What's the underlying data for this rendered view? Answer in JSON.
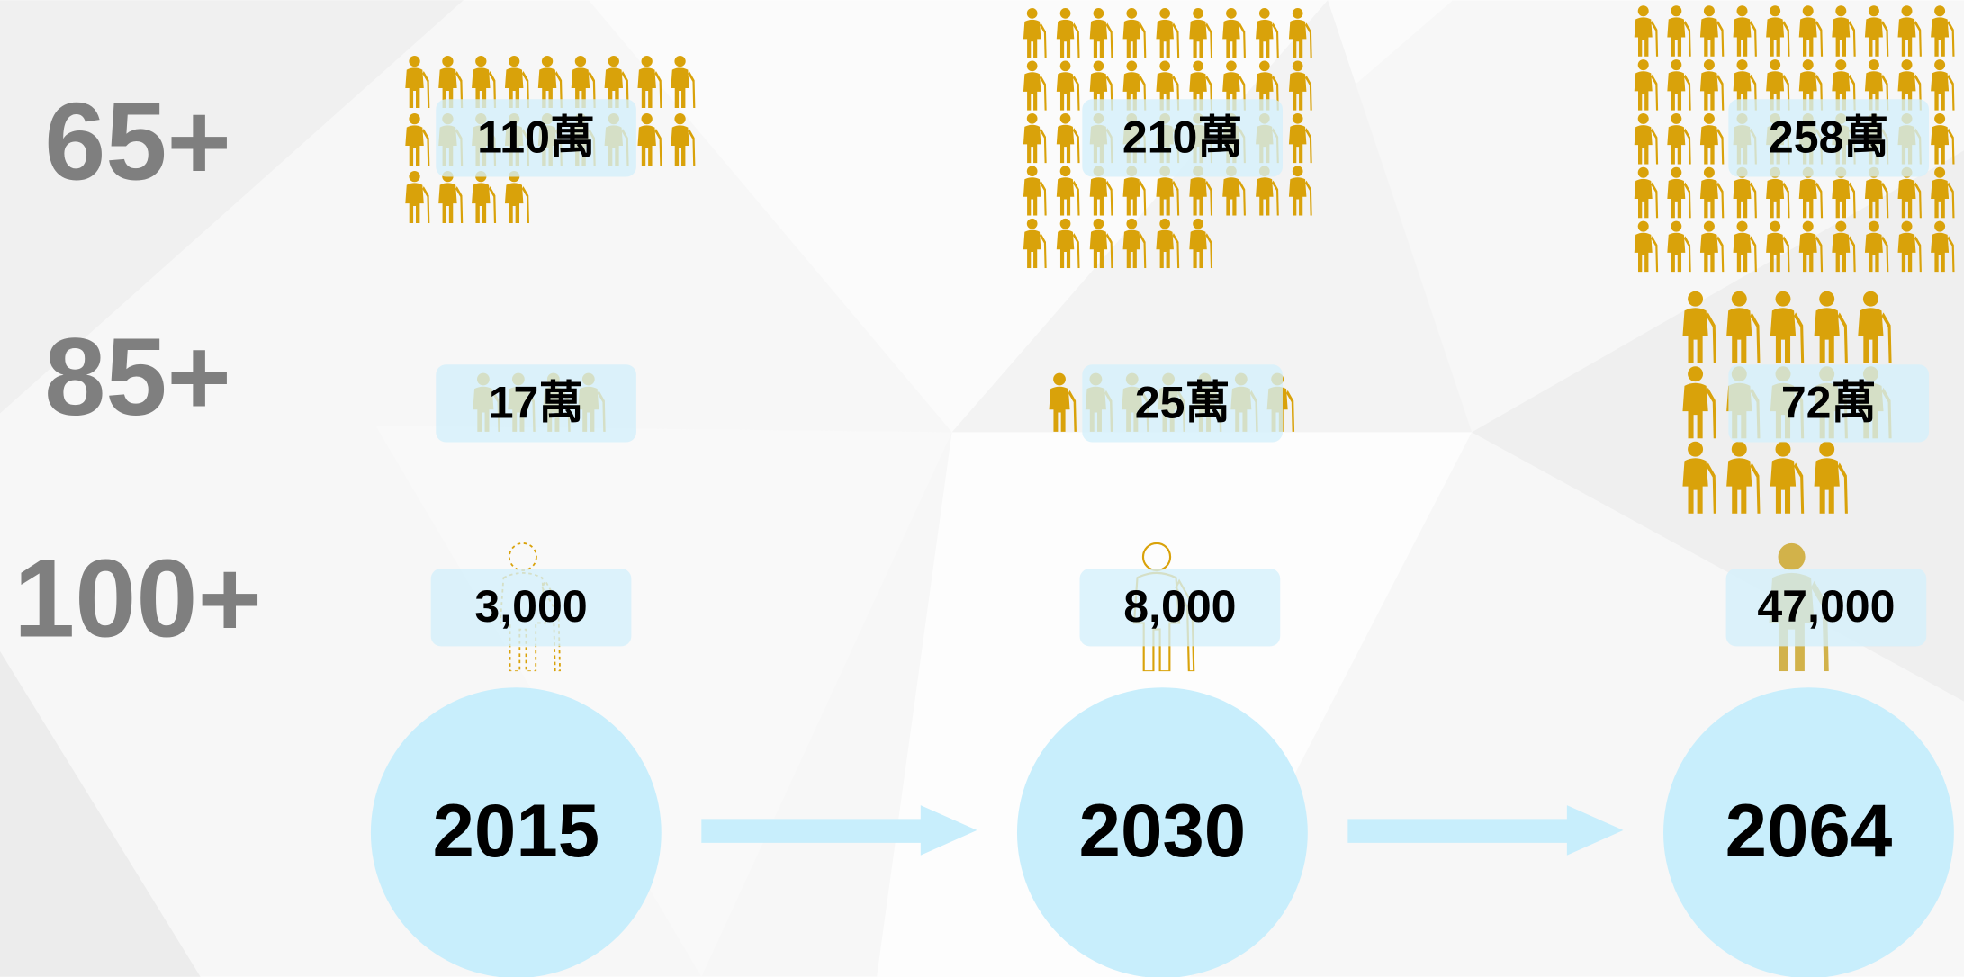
{
  "rows": [
    "65+",
    "85+",
    "100+"
  ],
  "years": [
    "2015",
    "2030",
    "2064"
  ],
  "cells": [
    [
      "110萬",
      "210萬",
      "258萬"
    ],
    [
      "17萬",
      "25萬",
      "72萬"
    ],
    [
      "3,000",
      "8,000",
      "47,000"
    ]
  ]
}
